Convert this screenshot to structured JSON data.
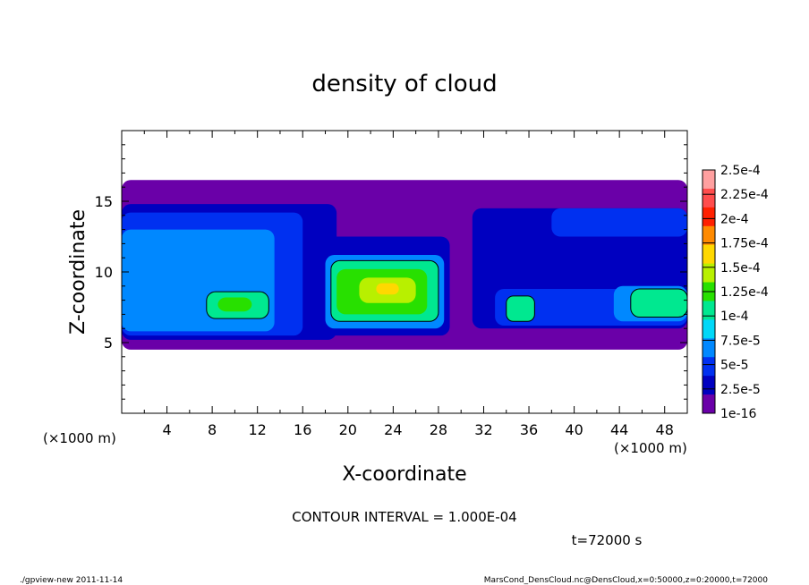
{
  "chart_data": {
    "type": "heatmap",
    "title": "density of cloud",
    "xlabel": "X-coordinate",
    "ylabel": "Z-coordinate",
    "x_unit": "(×1000 m)",
    "x_unit_right": "(×1000 m)",
    "xlim": [
      0,
      50
    ],
    "ylim": [
      0,
      20
    ],
    "x_ticks": [
      "4",
      "8",
      "12",
      "16",
      "20",
      "24",
      "28",
      "32",
      "36",
      "40",
      "44",
      "48"
    ],
    "y_ticks": [
      "5",
      "10",
      "15"
    ],
    "x_tick_values": [
      4,
      8,
      12,
      16,
      20,
      24,
      28,
      32,
      36,
      40,
      44,
      48
    ],
    "y_tick_values": [
      5,
      10,
      15
    ],
    "contour_interval_label": "CONTOUR INTERVAL = 1.000E-04",
    "time_label": "t=72000 s",
    "colorbar": {
      "labels": [
        "2.5e-4",
        "2.25e-4",
        "2e-4",
        "1.75e-4",
        "1.5e-4",
        "1.25e-4",
        "1e-4",
        "7.5e-5",
        "5e-5",
        "2.5e-5",
        "1e-16"
      ],
      "colors": [
        "#ffa0a0",
        "#ff4d4d",
        "#ff2000",
        "#ff8a00",
        "#ffd800",
        "#b8f000",
        "#28e000",
        "#00e890",
        "#00d8f8",
        "#0088ff",
        "#0030f0",
        "#0000c0",
        "#6a00a8"
      ]
    },
    "cloud_layer_z": [
      4.5,
      16.5
    ],
    "cells": [
      {
        "x0": 0,
        "x1": 50,
        "z0": 4.5,
        "z1": 16.5,
        "level": 0
      },
      {
        "x0": 0,
        "x1": 19,
        "z0": 5.2,
        "z1": 14.8,
        "level": 1
      },
      {
        "x0": 0,
        "x1": 16,
        "z0": 5.5,
        "z1": 14.2,
        "level": 2
      },
      {
        "x0": 0,
        "x1": 13.5,
        "z0": 5.8,
        "z1": 13.0,
        "level": 3
      },
      {
        "x0": 18,
        "x1": 29,
        "z0": 5.5,
        "z1": 12.5,
        "level": 1
      },
      {
        "x0": 18,
        "x1": 28.5,
        "z0": 6.0,
        "z1": 11.2,
        "level": 3
      },
      {
        "x0": 18.5,
        "x1": 28,
        "z0": 6.5,
        "z1": 10.8,
        "level": 5
      },
      {
        "x0": 19,
        "x1": 27,
        "z0": 7.0,
        "z1": 10.2,
        "level": 6
      },
      {
        "x0": 21,
        "x1": 26,
        "z0": 7.8,
        "z1": 9.6,
        "level": 7
      },
      {
        "x0": 22.5,
        "x1": 24.5,
        "z0": 8.4,
        "z1": 9.2,
        "level": 8
      },
      {
        "x0": 7.5,
        "x1": 13,
        "z0": 6.7,
        "z1": 8.6,
        "level": 5
      },
      {
        "x0": 8.5,
        "x1": 11.5,
        "z0": 7.2,
        "z1": 8.2,
        "level": 6
      },
      {
        "x0": 31,
        "x1": 50,
        "z0": 6.0,
        "z1": 14.5,
        "level": 1
      },
      {
        "x0": 33,
        "x1": 50,
        "z0": 6.2,
        "z1": 8.8,
        "level": 2
      },
      {
        "x0": 34,
        "x1": 36.5,
        "z0": 6.5,
        "z1": 8.3,
        "level": 5
      },
      {
        "x0": 43.5,
        "x1": 50,
        "z0": 6.5,
        "z1": 9.0,
        "level": 3
      },
      {
        "x0": 45,
        "x1": 50,
        "z0": 6.8,
        "z1": 8.8,
        "level": 5
      },
      {
        "x0": 38,
        "x1": 50,
        "z0": 12.5,
        "z1": 14.5,
        "level": 2
      }
    ]
  },
  "footer": {
    "left": "./gpview-new   2011-11-14",
    "right": "MarsCond_DensCloud.nc@DensCloud,x=0:50000,z=0:20000,t=72000"
  }
}
